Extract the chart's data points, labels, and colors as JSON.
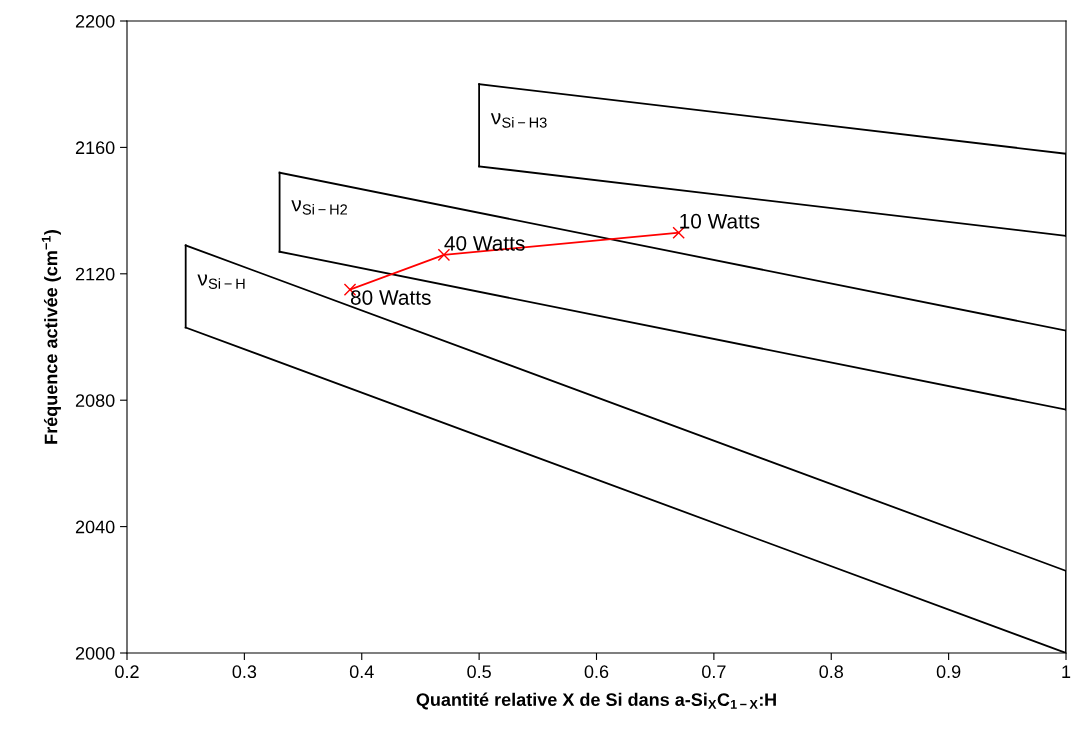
{
  "chart_data": {
    "type": "line",
    "xlabel": "Quantité relative X de Si dans a-Si$_{X}$C$_{1−X}$:H",
    "ylabel": "Fréquence activée (cm$^{−1}$)",
    "xlim": [
      0.2,
      1
    ],
    "xticks": [
      0.2,
      0.3,
      0.4,
      0.5,
      0.6,
      0.7,
      0.8,
      0.9,
      1
    ],
    "ylim": [
      2000,
      2200
    ],
    "yticks": [
      2000,
      2040,
      2080,
      2120,
      2160,
      2200
    ],
    "grid": false,
    "legend": false,
    "marker": "none",
    "series": [
      {
        "color": "#000000",
        "x": [
          0.25,
          1
        ],
        "values": [
          2129,
          2026
        ]
      },
      {
        "color": "#000000",
        "x": [
          0.25,
          1
        ],
        "values": [
          2103,
          2000
        ]
      },
      {
        "color": "#000000",
        "x": [
          0.25,
          0.25
        ],
        "values": [
          2103,
          2129
        ]
      },
      {
        "color": "#000000",
        "x": [
          1,
          1
        ],
        "values": [
          2000,
          2026
        ]
      },
      {
        "color": "#000000",
        "x": [
          0.33,
          1
        ],
        "values": [
          2152,
          2102
        ]
      },
      {
        "color": "#000000",
        "x": [
          0.33,
          1
        ],
        "values": [
          2127,
          2077
        ]
      },
      {
        "color": "#000000",
        "x": [
          0.33,
          0.33
        ],
        "values": [
          2127,
          2152
        ]
      },
      {
        "color": "#000000",
        "x": [
          1,
          1
        ],
        "values": [
          2077,
          2102
        ]
      },
      {
        "color": "#000000",
        "x": [
          0.5,
          1
        ],
        "values": [
          2180,
          2158
        ]
      },
      {
        "color": "#000000",
        "x": [
          0.5,
          1
        ],
        "values": [
          2154,
          2132
        ]
      },
      {
        "color": "#000000",
        "x": [
          0.5,
          0.5
        ],
        "values": [
          2154,
          2180
        ]
      },
      {
        "color": "#000000",
        "x": [
          1,
          1
        ],
        "values": [
          2132,
          2158
        ]
      },
      {
        "color": "#ff0000",
        "marker": "cross",
        "x": [
          0.39,
          0.47,
          0.67
        ],
        "values": [
          2115,
          2126,
          2133
        ]
      }
    ],
    "annotations": [
      "ν$_{Si−H}$",
      "ν$_{Si−H2}$",
      "ν$_{Si−H3}$",
      {
        "text": "80 Watts",
        "x": 0.39,
        "y": 2115
      },
      {
        "text": "40 Watts",
        "x": 0.47,
        "y": 2126
      },
      {
        "text": "10 Watts",
        "x": 0.67,
        "y": 2133
      }
    ]
  }
}
